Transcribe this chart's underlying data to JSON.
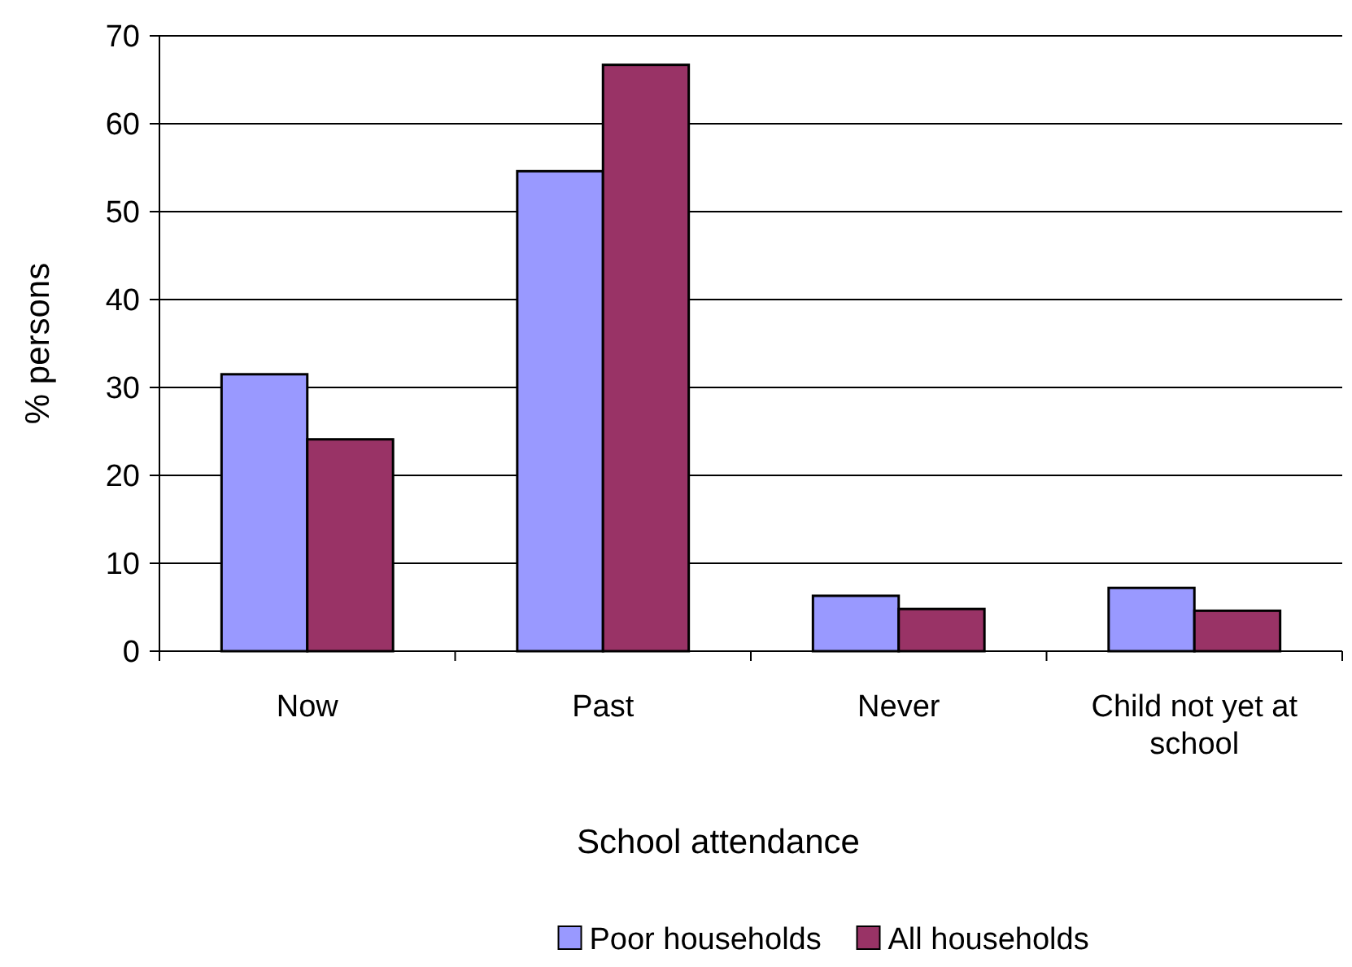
{
  "chart_data": {
    "type": "bar",
    "xlabel": "School attendance",
    "ylabel": "% persons",
    "categories": [
      "Now",
      "Past",
      "Never",
      "Child not yet at school"
    ],
    "series": [
      {
        "name": "Poor households",
        "color": "#9999ff",
        "values": [
          31.5,
          54.6,
          6.3,
          7.2
        ]
      },
      {
        "name": "All households",
        "color": "#993366",
        "values": [
          24.1,
          66.7,
          4.8,
          4.6
        ]
      }
    ],
    "ylim": [
      0,
      70
    ],
    "yticks": [
      0,
      10,
      20,
      30,
      40,
      50,
      60,
      70
    ],
    "grid": "y",
    "legend": "bottom"
  }
}
